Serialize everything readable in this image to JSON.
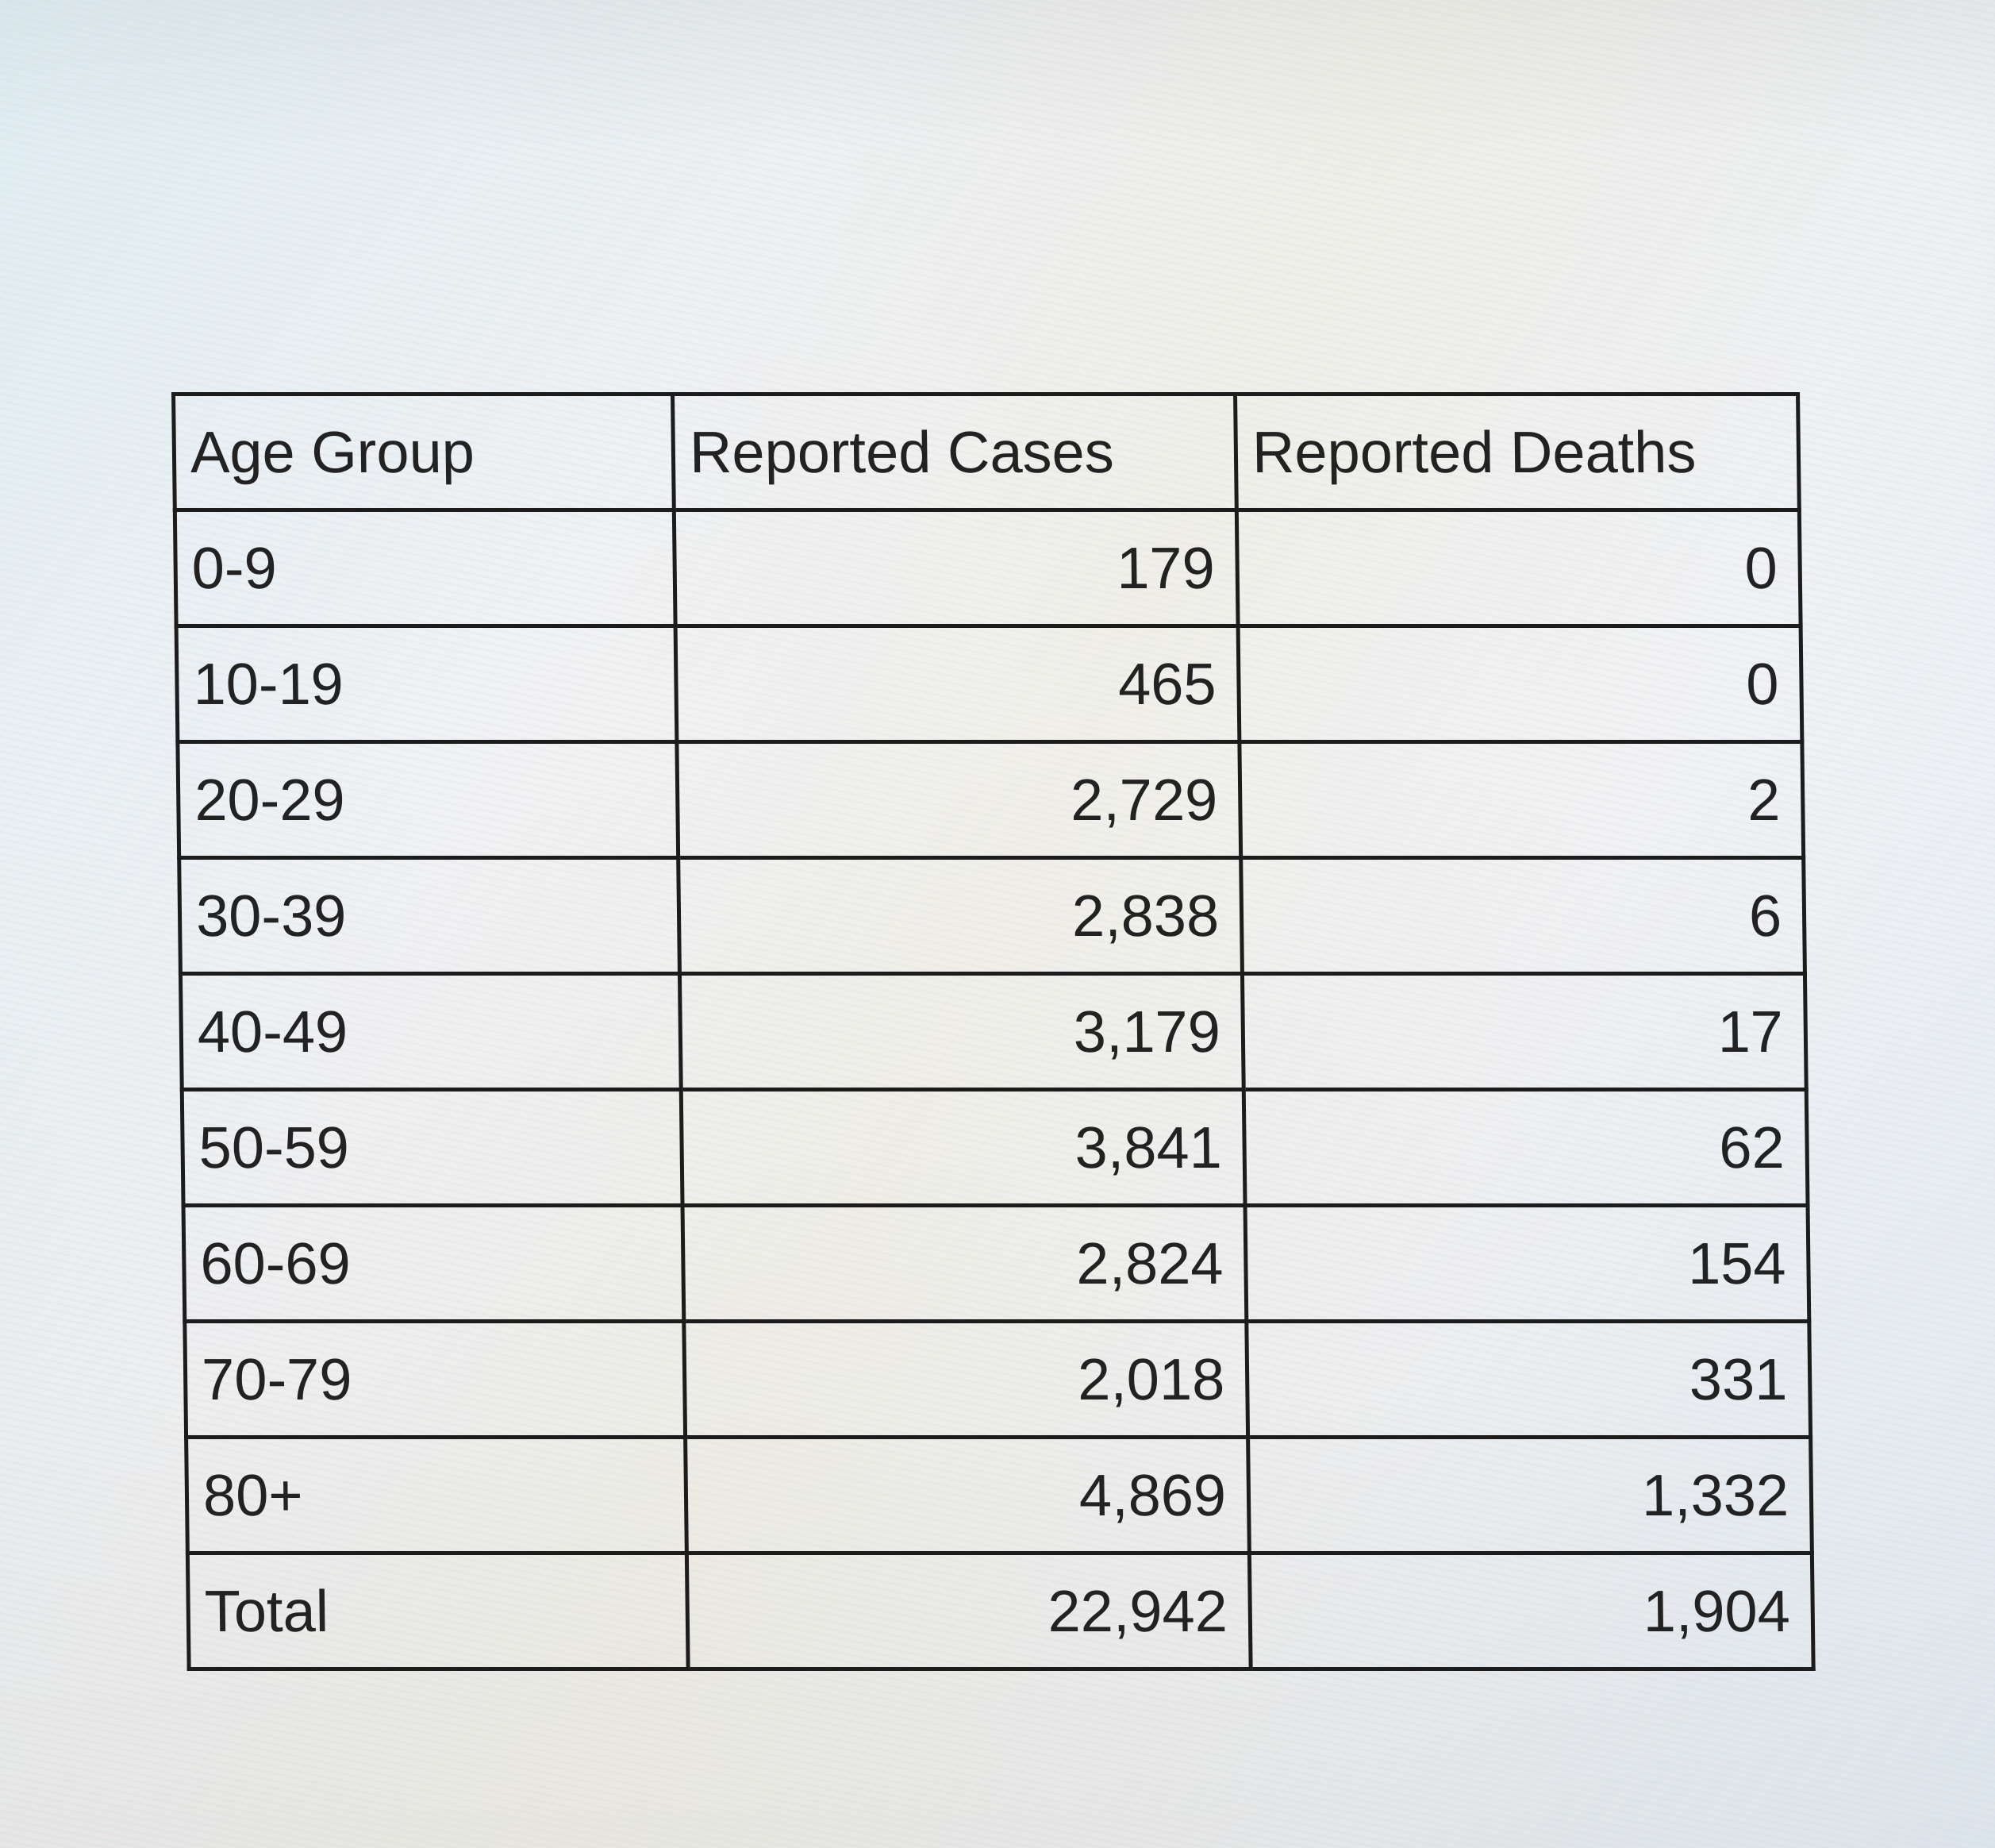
{
  "table": {
    "headers": [
      "Age Group",
      "Reported Cases",
      "Reported Deaths"
    ],
    "rows": [
      [
        "0-9",
        "179",
        "0"
      ],
      [
        "10-19",
        "465",
        "0"
      ],
      [
        "20-29",
        "2,729",
        "2"
      ],
      [
        "30-39",
        "2,838",
        "6"
      ],
      [
        "40-49",
        "3,179",
        "17"
      ],
      [
        "50-59",
        "3,841",
        "62"
      ],
      [
        "60-69",
        "2,824",
        "154"
      ],
      [
        "70-79",
        "2,018",
        "331"
      ],
      [
        "80+",
        "4,869",
        "1,332"
      ],
      [
        "Total",
        "22,942",
        "1,904"
      ]
    ]
  }
}
